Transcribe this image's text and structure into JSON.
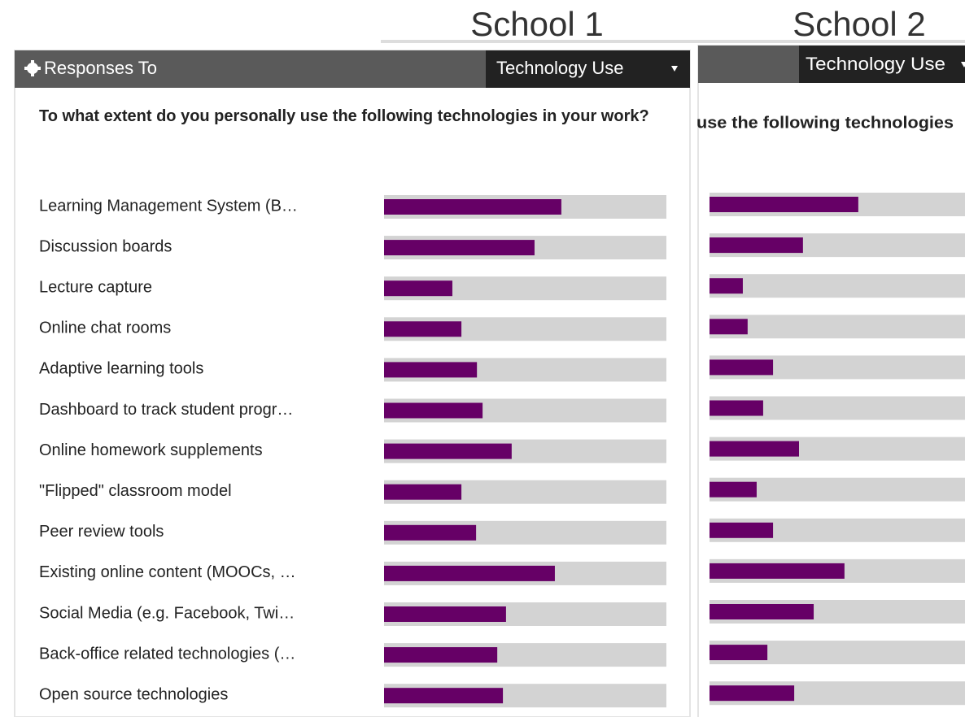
{
  "chart_data": [
    {
      "type": "bar",
      "title": "School 1",
      "panel_label": "Responses To",
      "dropdown": "Technology Use",
      "question": "To what extent do you personally use the following technologies in your work?",
      "categories": [
        "Learning Management System (B…",
        "Discussion boards",
        "Lecture capture",
        "Online chat rooms",
        "Adaptive learning tools",
        "Dashboard to track student progr…",
        "Online homework supplements",
        "\"Flipped\" classroom model",
        "Peer review tools",
        "Existing online content (MOOCs, …",
        "Social Media (e.g. Facebook, Twi…",
        "Back-office related technologies (…",
        "Open source technologies"
      ],
      "values": [
        62.8,
        53.3,
        24.2,
        27.4,
        32.9,
        34.9,
        45.2,
        27.4,
        32.6,
        60.5,
        43.2,
        40.1,
        42.1
      ],
      "xlim": [
        0,
        100
      ],
      "color": "#660066",
      "track_color": "#d3d3d3"
    },
    {
      "type": "bar",
      "title": "School 2",
      "dropdown": "Technology Use",
      "question": "use the following technologies",
      "values": [
        52.7,
        33.1,
        11.8,
        13.5,
        22.5,
        19.0,
        31.7,
        16.7,
        22.5,
        47.8,
        36.9,
        20.5,
        30.0
      ],
      "xlim": [
        0,
        100
      ],
      "color": "#660066",
      "track_color": "#d3d3d3"
    }
  ]
}
